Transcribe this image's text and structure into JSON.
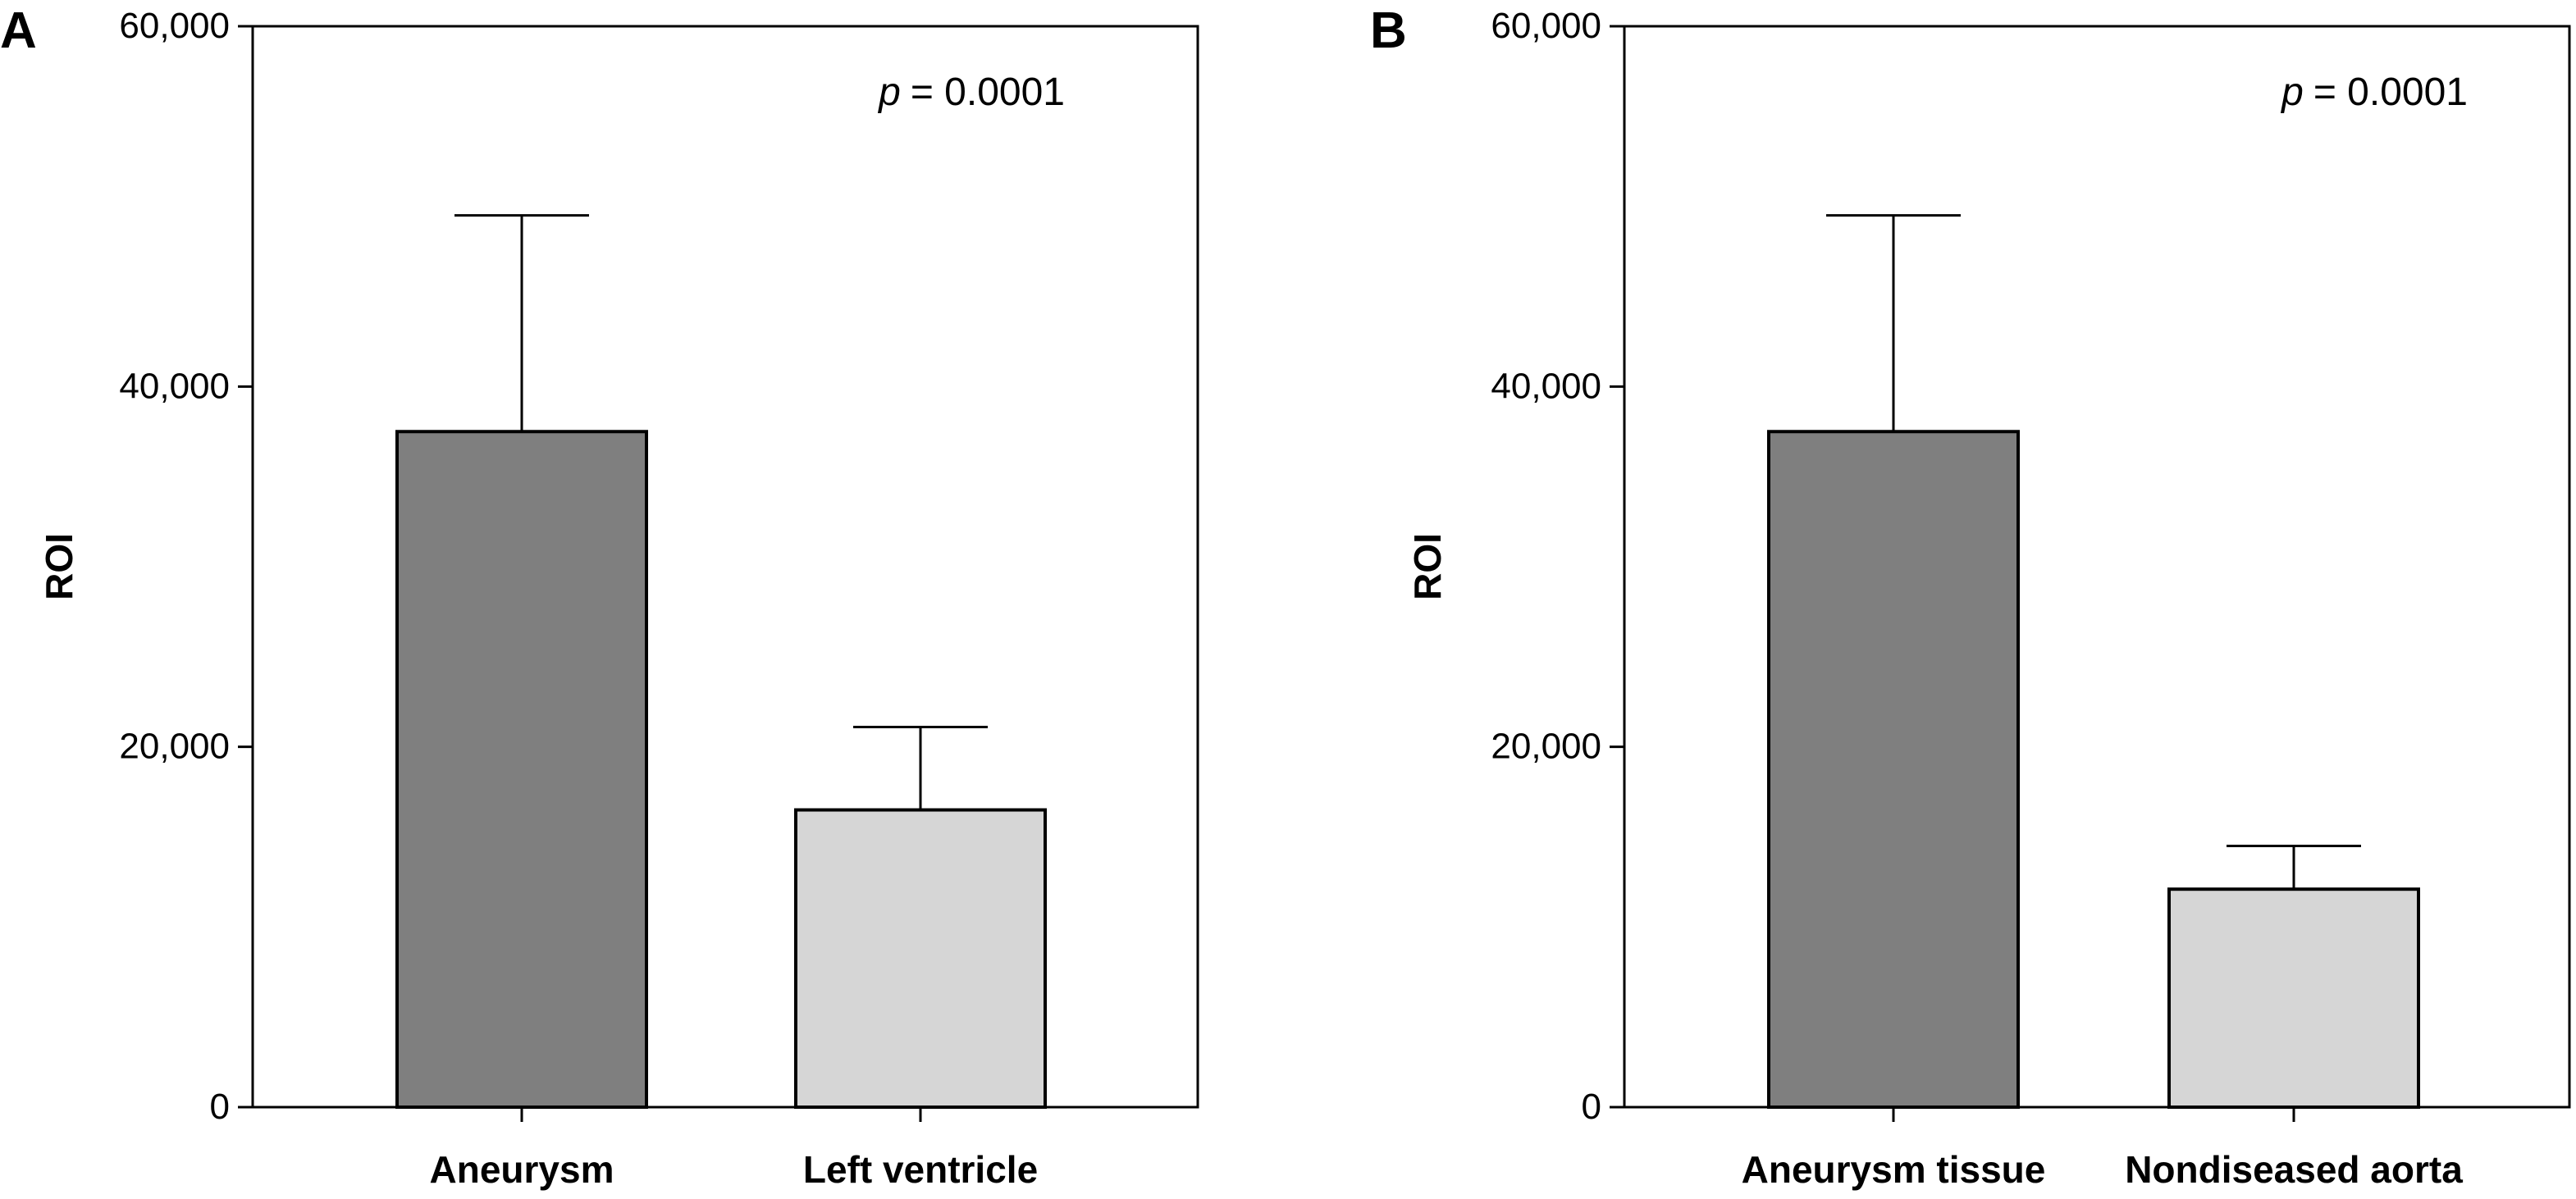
{
  "chart_data": [
    {
      "type": "bar",
      "panel": "A",
      "categories": [
        "Aneurysm",
        "Left ventricle"
      ],
      "values": [
        37500,
        16500
      ],
      "error_upper": [
        49500,
        21100
      ],
      "colors": [
        "#7f7f7f",
        "#d6d6d6"
      ],
      "ylabel": "ROI",
      "xlabel": "",
      "ylim": [
        0,
        60000
      ],
      "yticks": [
        0,
        20000,
        40000,
        60000
      ],
      "ytick_labels": [
        "0",
        "20,000",
        "40,000",
        "60,000"
      ],
      "annotation_p": "p",
      "annotation_value": "= 0.0001"
    },
    {
      "type": "bar",
      "panel": "B",
      "categories": [
        "Aneurysm tissue",
        "Nondiseased aorta"
      ],
      "values": [
        37500,
        12100
      ],
      "error_upper": [
        49500,
        14500
      ],
      "colors": [
        "#7f7f7f",
        "#d6d6d6"
      ],
      "ylabel": "ROI",
      "xlabel": "",
      "ylim": [
        0,
        60000
      ],
      "yticks": [
        0,
        20000,
        40000,
        60000
      ],
      "ytick_labels": [
        "0",
        "20,000",
        "40,000",
        "60,000"
      ],
      "annotation_p": "p",
      "annotation_value": "= 0.0001"
    }
  ]
}
